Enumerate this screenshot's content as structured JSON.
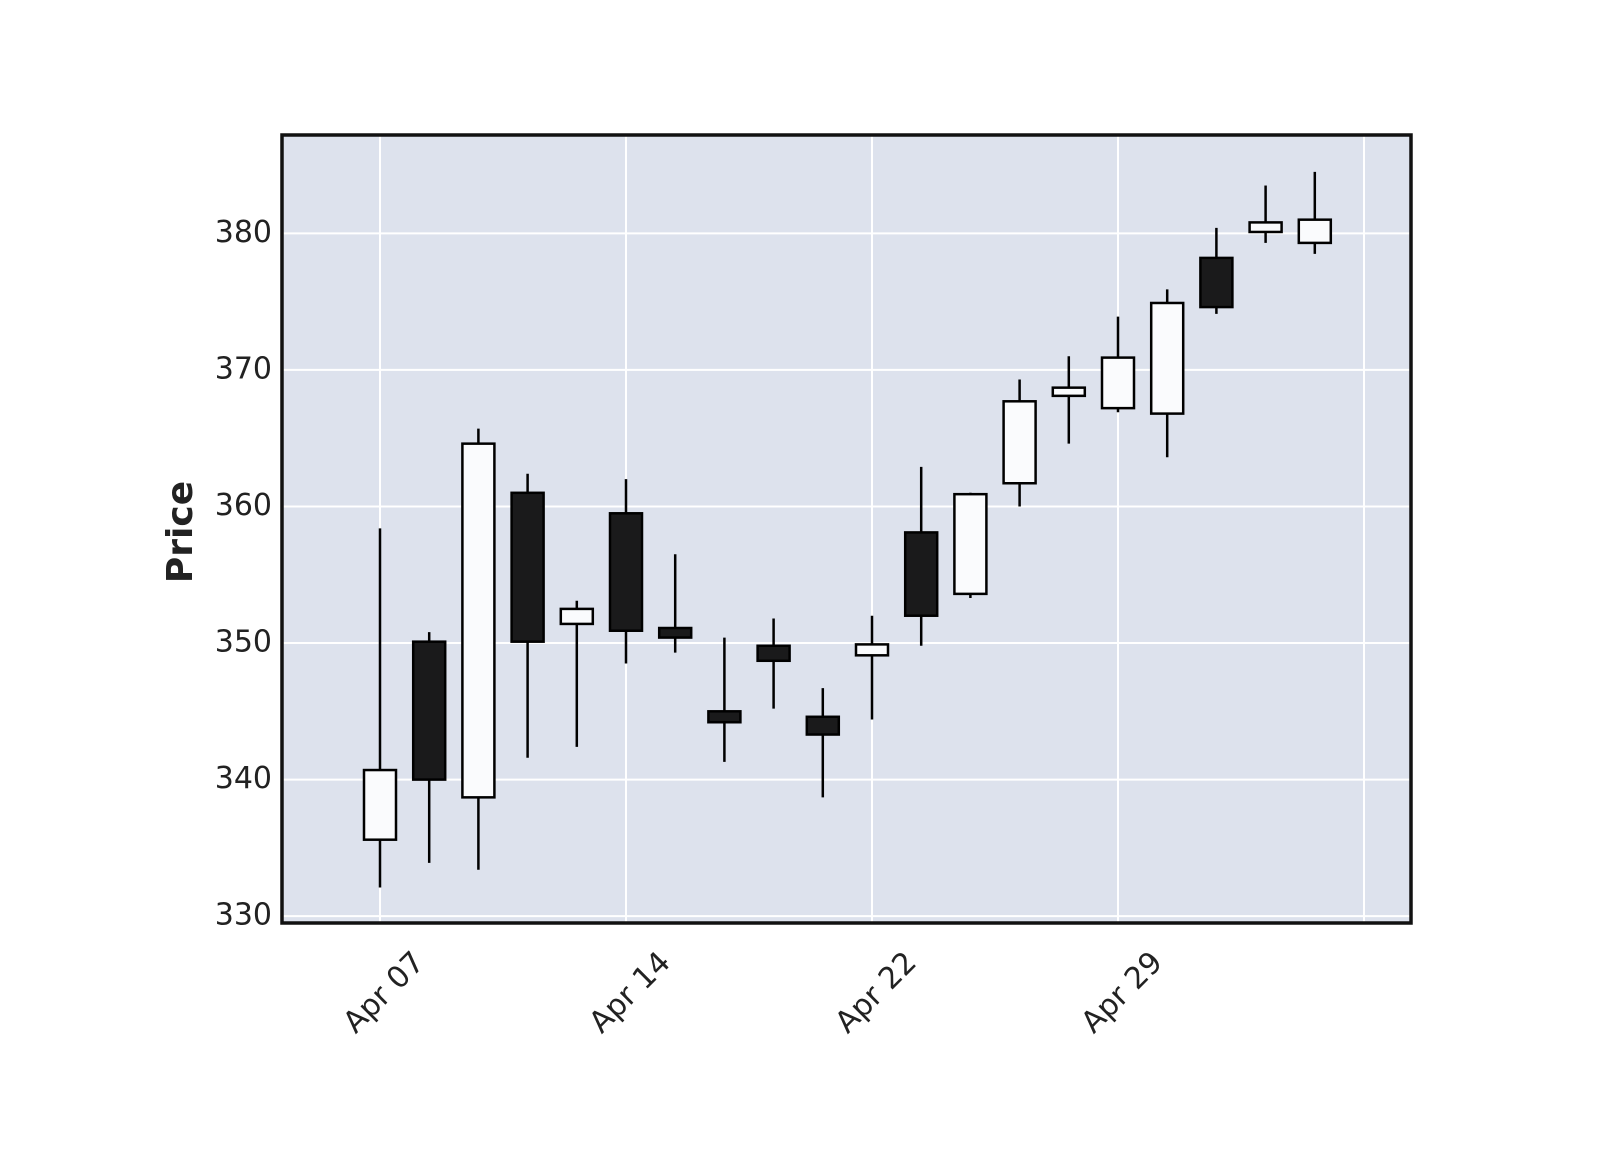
{
  "chart_data": {
    "type": "candlestick",
    "ylabel": "Price",
    "categories": [
      "Apr 07",
      null,
      null,
      null,
      null,
      "Apr 14",
      null,
      null,
      null,
      null,
      "Apr 22",
      null,
      null,
      null,
      null,
      "Apr 29",
      null,
      null,
      null,
      null
    ],
    "open": [
      335.6,
      350.1,
      338.7,
      361.0,
      351.4,
      359.5,
      351.1,
      345.0,
      349.8,
      344.6,
      349.1,
      358.1,
      353.6,
      361.7,
      368.1,
      367.2,
      366.8,
      378.2,
      380.1,
      379.3
    ],
    "high": [
      358.4,
      350.8,
      365.7,
      362.4,
      353.1,
      362.0,
      356.5,
      350.4,
      351.8,
      346.7,
      352.0,
      362.9,
      361.0,
      369.3,
      371.0,
      373.9,
      375.9,
      380.4,
      383.5,
      384.5
    ],
    "low": [
      332.1,
      333.9,
      333.4,
      341.6,
      342.4,
      348.5,
      349.3,
      341.3,
      345.2,
      338.7,
      344.4,
      349.8,
      353.3,
      360.0,
      364.6,
      366.9,
      363.6,
      374.1,
      379.3,
      378.5
    ],
    "close": [
      340.7,
      340.0,
      364.6,
      350.1,
      352.5,
      350.9,
      350.4,
      344.2,
      348.7,
      343.3,
      349.9,
      352.0,
      360.9,
      367.7,
      368.7,
      370.9,
      374.9,
      374.6,
      380.8,
      381.0
    ],
    "up_color": "#fafbfd",
    "down_color": "#1a1a1b",
    "ylim": [
      329.5,
      387.2
    ],
    "yticks": [
      330,
      340,
      350,
      360,
      370,
      380
    ],
    "grid": true
  }
}
